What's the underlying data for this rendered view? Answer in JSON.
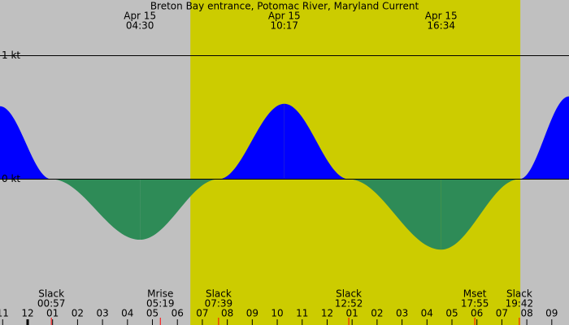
{
  "chart_data": {
    "type": "area",
    "title": "Breton Bay entrance, Potomac River, Maryland Current",
    "x": [
      -1.107,
      0.95,
      4.5,
      7.65,
      10.283,
      12.867,
      16.567,
      19.7,
      21.69
    ],
    "values": [
      0.59,
      0,
      -0.49,
      0,
      0.61,
      0,
      -0.57,
      0,
      0.67
    ],
    "xlim": [
      -1.107,
      21.69
    ],
    "ylim": [
      -1.18,
      1.45
    ],
    "yticks": [
      {
        "value": 0,
        "label": "0 kt"
      },
      {
        "value": 1,
        "label": "1 kt"
      }
    ],
    "xticks": [
      {
        "value": -1,
        "label": "11"
      },
      {
        "value": 0,
        "label": "12"
      },
      {
        "value": 1,
        "label": "01"
      },
      {
        "value": 2,
        "label": "02"
      },
      {
        "value": 3,
        "label": "03"
      },
      {
        "value": 4,
        "label": "04"
      },
      {
        "value": 5,
        "label": "05"
      },
      {
        "value": 6,
        "label": "06"
      },
      {
        "value": 7,
        "label": "07"
      },
      {
        "value": 8,
        "label": "08"
      },
      {
        "value": 9,
        "label": "09"
      },
      {
        "value": 10,
        "label": "10"
      },
      {
        "value": 11,
        "label": "11"
      },
      {
        "value": 12,
        "label": "12"
      },
      {
        "value": 13,
        "label": "01"
      },
      {
        "value": 14,
        "label": "02"
      },
      {
        "value": 15,
        "label": "03"
      },
      {
        "value": 16,
        "label": "04"
      },
      {
        "value": 17,
        "label": "05"
      },
      {
        "value": 18,
        "label": "06"
      },
      {
        "value": 19,
        "label": "07"
      },
      {
        "value": 20,
        "label": "08"
      },
      {
        "value": 21,
        "label": "09"
      }
    ],
    "extremes": [
      {
        "date": "Apr 15",
        "time": "04:30",
        "x": 4.5
      },
      {
        "date": "Apr 15",
        "time": "10:17",
        "x": 10.283
      },
      {
        "date": "Apr 15",
        "time": "16:34",
        "x": 16.567
      }
    ],
    "events": [
      {
        "label": "Slack",
        "time": "00:57",
        "x": 0.95
      },
      {
        "label": "Mrise",
        "time": "05:19",
        "x": 5.317
      },
      {
        "label": "Slack",
        "time": "07:39",
        "x": 7.65
      },
      {
        "label": "Slack",
        "time": "12:52",
        "x": 12.867
      },
      {
        "label": "Mset",
        "time": "17:55",
        "x": 17.917
      },
      {
        "label": "Slack",
        "time": "19:42",
        "x": 19.7
      }
    ],
    "daylight": [
      6.52,
      19.74
    ],
    "flood_color": "#0000ff",
    "ebb_color": "#2e8b57",
    "night_color": "#c0c0c0",
    "day_color": "#cccc00",
    "event_tick_color": "#ff0000"
  }
}
